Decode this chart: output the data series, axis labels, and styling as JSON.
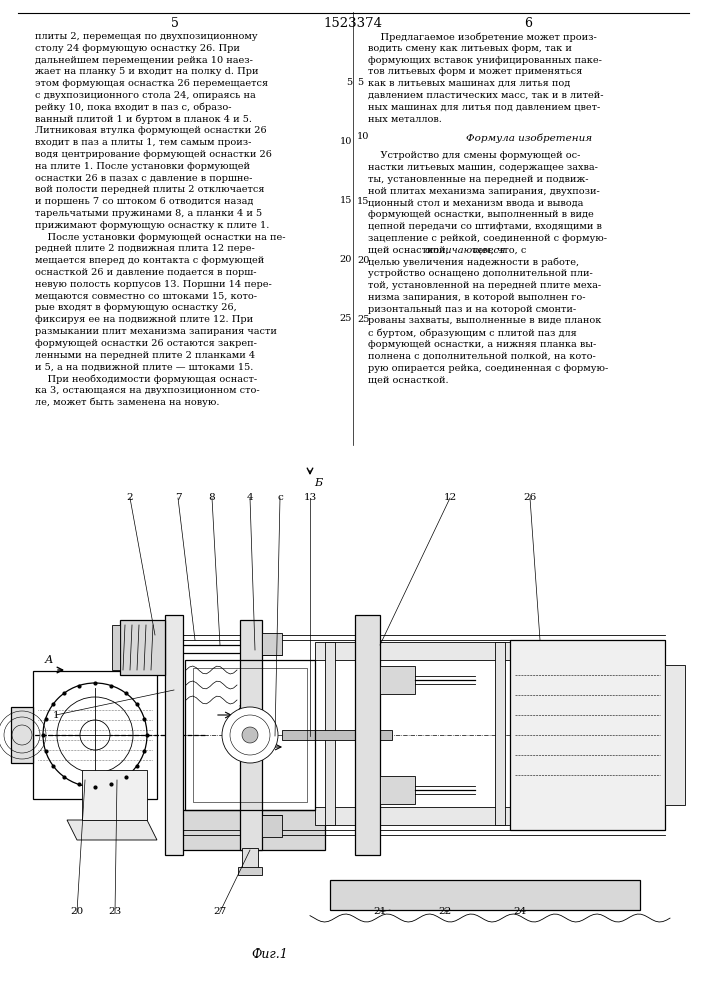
{
  "patent_number": "1523374",
  "page_left": "5",
  "page_right": "6",
  "left_column_text": "плиты 2, перемещая по двухпозиционному\nстолу 24 формующую оснастку 26. При\nдальнейшем перемещении рейка 10 наез-\nжает на планку 5 и входит на полку d. При\nэтом формующая оснастка 26 перемещается\nс двухпозиционного стола 24, опираясь на\nрейку 10, пока входит в паз c, образо-\nванный плитой 1 и буртом в планок 4 и 5.\nЛитниковая втулка формующей оснастки 26\nвходит в паз a плиты 1, тем самым произ-\nводя центрирование формующей оснастки 26\nна плите 1. После установки формующей\nоснастки 26 в пазах c давление в поршне-\nвой полости передней плиты 2 отключается\nи поршень 7 со штоком 6 отводится назад\nтарельчатыми пружинами 8, а планки 4 и 5\nприжимают формующую оснастку к плите 1.\n    После установки формующей оснастки на пе-\nредней плите 2 подвижная плита 12 пере-\nмещается вперед до контакта с формующей\nоснасткой 26 и давление подается в порш-\nневую полость корпусов 13. Поршни 14 пере-\nмещаются совместно со штоками 15, кото-\nрые входят в формующую оснастку 26,\nфиксируя ее на подвижной плите 12. При\nразмыкании плит механизма запирания части\nформующей оснастки 26 остаются закреп-\nленными на передней плите 2 планками 4\nи 5, а на подвижной плите — штоками 15.\n    При необходимости формующая оснаст-\nка 3, остающаяся на двухпозиционном сто-\nле, может быть заменена на новую.",
  "right_top_text": "    Предлагаемое изобретение может произ-\nводить смену как литьевых форм, так и\nформующих вставок унифицированных паке-\nтов литьевых форм и может применяться\nкак в литьевых машинах для литья под\nдавлением пластических масс, так и в литей-\nных машинах для литья под давлением цвет-\nных металлов.",
  "formula_title": "Формула изобретения",
  "formula_text_normal_1": "    Устройство для смены формующей ос-\nнастки литьевых машин, содержащее захва-\nты, установленные на передней и подвиж-\nной плитах механизма запирания, двухпози-\nционный стол и механизм ввода и вывода\nформующей оснастки, выполненный в виде\nцепной передачи со штифтами, входящими в\nзацепление с рейкой, соединенной с формую-\nщей оснасткой, ",
  "formula_text_italic": "отличающееся",
  "formula_text_normal_2": " тем, что, с\nцелью увеличения надежности в работе,\nустройство оснащено дополнительной пли-\nтой, установленной на передней плите меха-\nнизма запирания, в которой выполнен го-\nризонтальный паз и на которой смонти-\nрованы захваты, выполненные в виде планок\nс буртом, образующим с плитой паз для\nформующей оснастки, а нижняя планка вы-\nполнена с дополнительной полкой, на кото-\nрую опирается рейка, соединенная с формую-\nщей оснасткой.",
  "fig_label": "Фиг.1",
  "line_numbers": [
    5,
    10,
    15,
    20,
    25
  ],
  "bg": "#ffffff",
  "fg": "#000000"
}
